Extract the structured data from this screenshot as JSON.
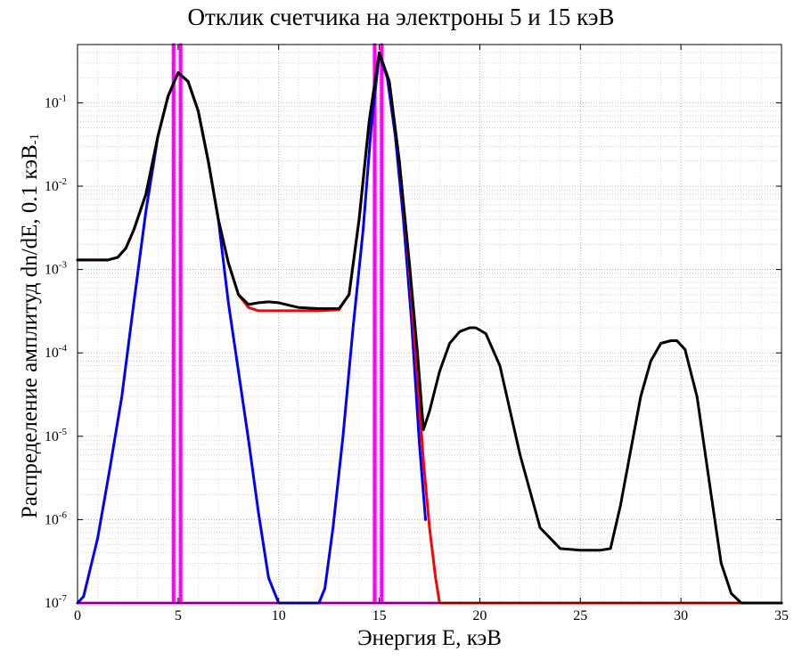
{
  "chart_data": {
    "type": "line",
    "title": "Отклик счетчика на электроны 5 и 15 кэВ",
    "xlabel": "Энергия E, кэВ",
    "ylabel": "Распределение амплитуд dn/dE, 0.1 кэВ",
    "ylabel_unit_sub": "-1",
    "xscale": "linear",
    "yscale": "log",
    "xlim": [
      0,
      35
    ],
    "ylim": [
      1e-07,
      0.5
    ],
    "xticks": [
      0,
      5,
      10,
      15,
      20,
      25,
      30,
      35
    ],
    "xtick_labels": [
      "0",
      "5",
      "10",
      "15",
      "20",
      "25",
      "30",
      "35"
    ],
    "yticks": [
      1e-07,
      1e-06,
      1e-05,
      0.0001,
      0.001,
      0.01,
      0.1
    ],
    "ytick_labels": [
      {
        "base": "10",
        "exp": "-7"
      },
      {
        "base": "10",
        "exp": "-6"
      },
      {
        "base": "10",
        "exp": "-5"
      },
      {
        "base": "10",
        "exp": "-4"
      },
      {
        "base": "10",
        "exp": "-3"
      },
      {
        "base": "10",
        "exp": "-2"
      },
      {
        "base": "10",
        "exp": "-1"
      }
    ],
    "grid": true,
    "series": [
      {
        "color": "#ff00ff",
        "x": [
          0,
          4.75,
          4.75,
          4.8,
          4.8,
          5.1,
          5.1,
          5.15,
          5.15,
          14.75,
          14.75,
          14.8,
          14.8,
          15.1,
          15.1,
          15.15,
          15.15,
          35
        ],
        "y": [
          1e-07,
          1e-07,
          0.5,
          0.5,
          1e-07,
          1e-07,
          0.5,
          0.5,
          1e-07,
          1e-07,
          0.5,
          0.5,
          1e-07,
          1e-07,
          0.5,
          0.5,
          1e-07,
          1e-07
        ]
      },
      {
        "color": "#0000ff",
        "x": [
          0,
          0.3,
          1.0,
          1.6,
          2.2,
          2.8,
          3.4,
          4.0,
          4.5,
          5.0,
          5.5,
          6.0,
          6.5,
          7.0,
          7.5,
          8.0,
          8.5,
          9.0,
          9.5,
          10.0,
          10.3,
          12.0,
          12.3,
          12.7,
          13.2,
          13.7,
          14.2,
          14.6,
          15.0,
          15.4,
          15.8,
          16.2,
          16.6,
          17.0,
          17.3
        ],
        "y": [
          1e-07,
          1.2e-07,
          6e-07,
          4e-06,
          3e-05,
          0.0004,
          0.005,
          0.04,
          0.12,
          0.23,
          0.18,
          0.08,
          0.02,
          0.004,
          0.0004,
          6e-05,
          9e-06,
          1.2e-06,
          2e-07,
          1e-07,
          1e-07,
          1e-07,
          1.5e-07,
          8e-07,
          1e-05,
          0.0002,
          0.003,
          0.05,
          0.38,
          0.2,
          0.04,
          0.004,
          0.00025,
          8e-06,
          1e-06
        ]
      },
      {
        "color": "#ff0000",
        "x": [
          0,
          1.5,
          2.0,
          2.4,
          2.8,
          3.4,
          4.0,
          4.5,
          5.0,
          5.5,
          6.0,
          6.5,
          7.0,
          7.5,
          8.0,
          8.5,
          9.0,
          10.0,
          11.0,
          12.0,
          13.0,
          13.5,
          14.0,
          14.5,
          15.0,
          15.5,
          16.0,
          16.5,
          16.9,
          17.2,
          17.5,
          17.8,
          18.0,
          19.0,
          35.0
        ],
        "y": [
          0.0013,
          0.0013,
          0.0014,
          0.0018,
          0.003,
          0.008,
          0.04,
          0.12,
          0.23,
          0.18,
          0.08,
          0.02,
          0.004,
          0.0012,
          0.0005,
          0.00035,
          0.00032,
          0.00032,
          0.00032,
          0.00032,
          0.00033,
          0.0005,
          0.004,
          0.06,
          0.4,
          0.18,
          0.02,
          0.001,
          5e-05,
          5e-06,
          8e-07,
          2e-07,
          1e-07,
          1e-07,
          1e-07
        ]
      },
      {
        "color": "#000000",
        "x": [
          0,
          1.5,
          2.0,
          2.4,
          2.8,
          3.4,
          4.0,
          4.5,
          5.0,
          5.5,
          6.0,
          6.5,
          7.0,
          7.5,
          8.0,
          8.5,
          9.0,
          9.5,
          10.0,
          11.0,
          12.0,
          13.0,
          13.5,
          14.0,
          14.5,
          15.0,
          15.5,
          16.0,
          16.5,
          16.9,
          17.2,
          17.5,
          18.0,
          18.5,
          19.0,
          19.5,
          19.8,
          20.3,
          21.0,
          22.0,
          23.0,
          24.0,
          25.0,
          26.0,
          26.5,
          27.0,
          28.0,
          28.5,
          29.0,
          29.5,
          29.8,
          30.2,
          30.8,
          31.5,
          32.0,
          32.5,
          33.0,
          35.0
        ],
        "y": [
          0.0013,
          0.0013,
          0.0014,
          0.0018,
          0.003,
          0.008,
          0.04,
          0.12,
          0.23,
          0.18,
          0.08,
          0.02,
          0.004,
          0.0012,
          0.0005,
          0.00038,
          0.0004,
          0.00041,
          0.0004,
          0.00035,
          0.00034,
          0.00034,
          0.0005,
          0.004,
          0.06,
          0.4,
          0.18,
          0.02,
          0.0012,
          0.0001,
          1.2e-05,
          2e-05,
          6e-05,
          0.00013,
          0.00018,
          0.0002,
          0.0002,
          0.00017,
          7e-05,
          6e-06,
          8e-07,
          4.5e-07,
          4.3e-07,
          4.3e-07,
          4.5e-07,
          1.5e-06,
          3e-05,
          8e-05,
          0.00013,
          0.00014,
          0.00014,
          0.00011,
          3e-05,
          2e-06,
          3e-07,
          1.3e-07,
          1e-07,
          1e-07
        ]
      }
    ]
  }
}
